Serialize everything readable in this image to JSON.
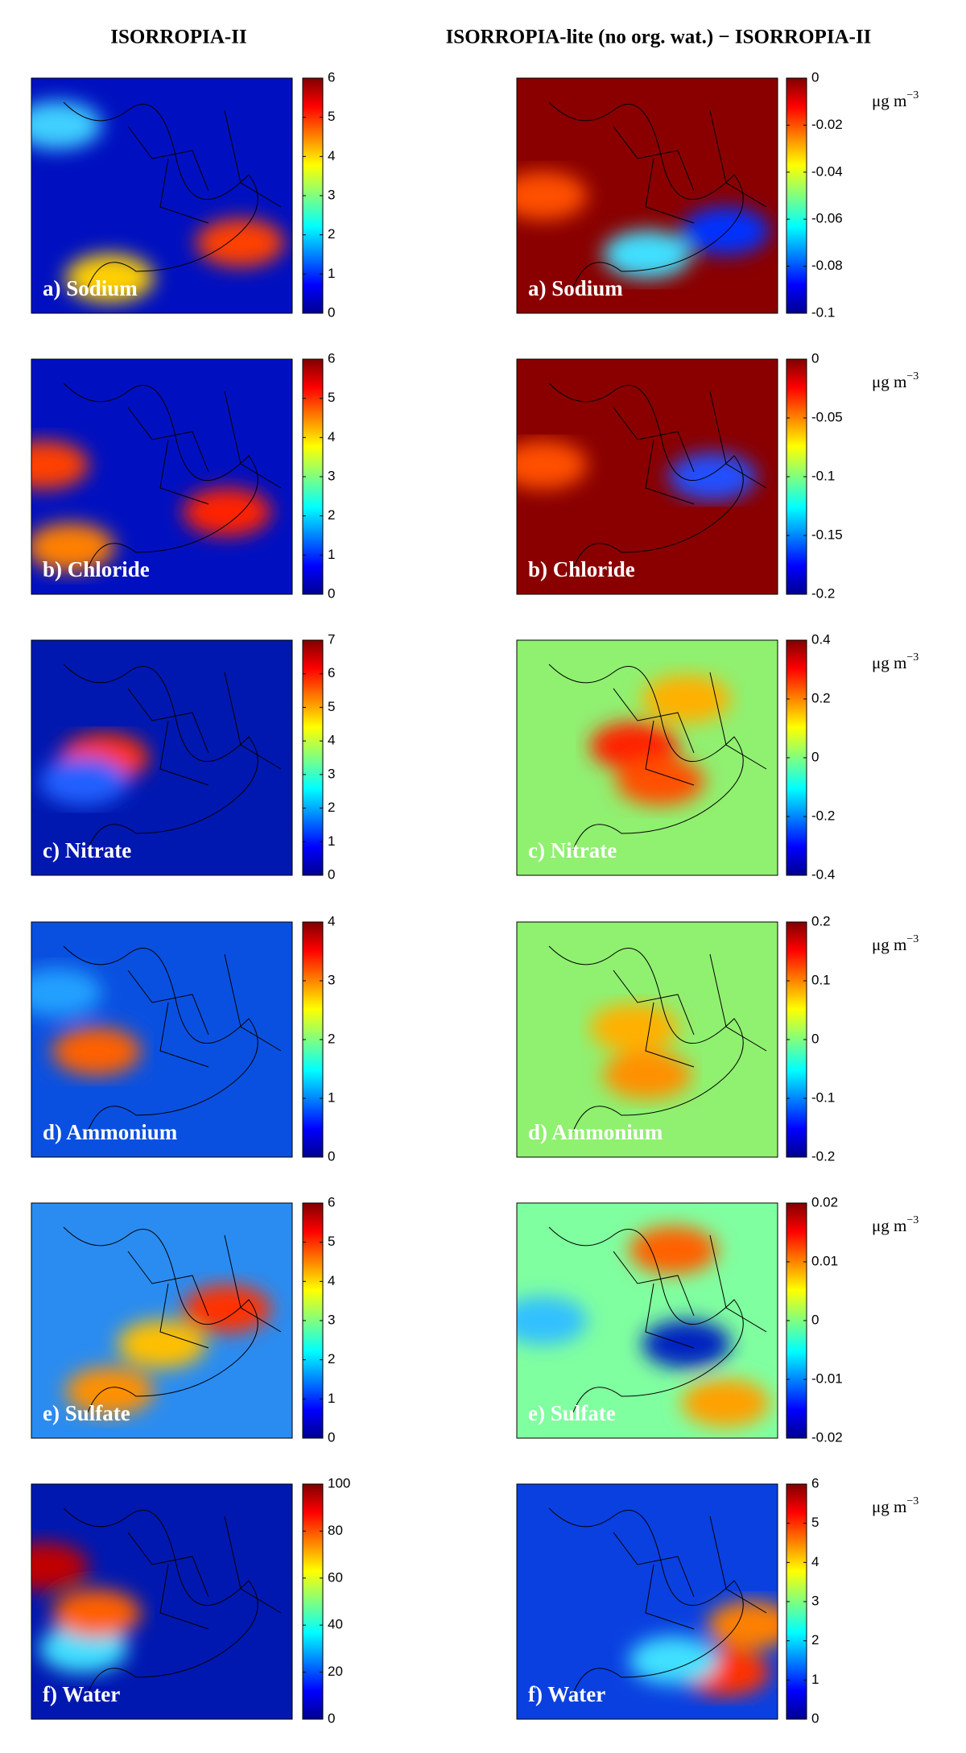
{
  "columns": [
    "ISORROPIA-II",
    "ISORROPIA-lite (no org. wat.) − ISORROPIA-II"
  ],
  "unit": {
    "base": "μg m",
    "exponent": "−3"
  },
  "panels": [
    {
      "left": {
        "label": "a) Sodium",
        "colorbar": {
          "lim": [
            0,
            6
          ],
          "ticks": [
            0,
            1,
            2,
            3,
            4,
            5,
            6
          ]
        }
      },
      "right": {
        "label": "a) Sodium",
        "colorbar": {
          "lim": [
            -0.1,
            0
          ],
          "ticks": [
            -0.1,
            -0.08,
            -0.06,
            -0.04,
            -0.02,
            0
          ]
        }
      }
    },
    {
      "left": {
        "label": "b) Chloride",
        "colorbar": {
          "lim": [
            0,
            6
          ],
          "ticks": [
            0,
            1,
            2,
            3,
            4,
            5,
            6
          ]
        }
      },
      "right": {
        "label": "b) Chloride",
        "colorbar": {
          "lim": [
            -0.2,
            0
          ],
          "ticks": [
            -0.2,
            -0.15,
            -0.1,
            -0.05,
            0
          ]
        }
      }
    },
    {
      "left": {
        "label": "c) Nitrate",
        "colorbar": {
          "lim": [
            0,
            7
          ],
          "ticks": [
            0,
            1,
            2,
            3,
            4,
            5,
            6,
            7
          ]
        }
      },
      "right": {
        "label": "c) Nitrate",
        "colorbar": {
          "lim": [
            -0.4,
            0.4
          ],
          "ticks": [
            -0.4,
            -0.2,
            0,
            0.2,
            0.4
          ]
        }
      }
    },
    {
      "left": {
        "label": "d) Ammonium",
        "colorbar": {
          "lim": [
            0,
            4
          ],
          "ticks": [
            0,
            1,
            2,
            3,
            4
          ]
        }
      },
      "right": {
        "label": "d) Ammonium",
        "colorbar": {
          "lim": [
            -0.2,
            0.2
          ],
          "ticks": [
            -0.2,
            -0.1,
            0,
            0.1,
            0.2
          ]
        }
      }
    },
    {
      "left": {
        "label": "e) Sulfate",
        "colorbar": {
          "lim": [
            0,
            6
          ],
          "ticks": [
            0,
            1,
            2,
            3,
            4,
            5,
            6
          ]
        }
      },
      "right": {
        "label": "e) Sulfate",
        "colorbar": {
          "lim": [
            -0.02,
            0.02
          ],
          "ticks": [
            -0.02,
            -0.01,
            0,
            0.01,
            0.02
          ]
        }
      }
    },
    {
      "left": {
        "label": "f) Water",
        "colorbar": {
          "lim": [
            0,
            100
          ],
          "ticks": [
            0,
            20,
            40,
            60,
            80,
            100
          ]
        }
      },
      "right": {
        "label": "f) Water",
        "colorbar": {
          "lim": [
            0,
            6
          ],
          "ticks": [
            0,
            1,
            2,
            3,
            4,
            5,
            6
          ]
        }
      }
    }
  ]
}
